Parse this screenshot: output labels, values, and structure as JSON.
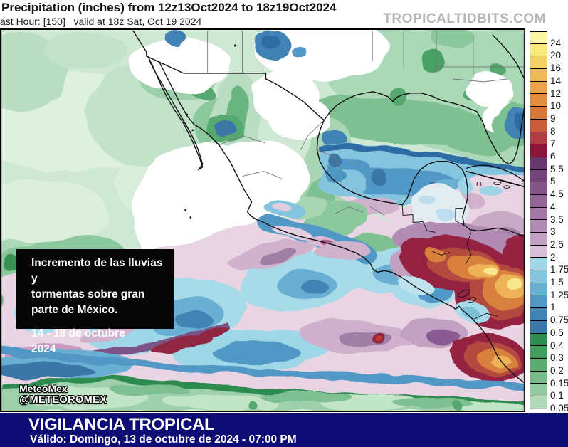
{
  "header": {
    "title": "Precipitation (inches) from 12z13Oct2024 to 18z19Oct2024",
    "subtitle": "ast Hour: [150]   valid at 18z Sat, Oct 19 2024",
    "watermark": "TROPICALTIDBITS.COM"
  },
  "annotation": {
    "line1": "Incremento de las lluvias y",
    "line2": "tormentas sobre gran",
    "line3": "parte de México.",
    "line4": "14 - 18 de octubre",
    "line5": "2024"
  },
  "credits": {
    "name": "MeteoMex",
    "handle": "@METEOROMEX"
  },
  "footer": {
    "title": "VIGILANCIA TROPICAL",
    "subtitle": "Válido: Domingo, 13 de octubre de 2024 - 07:00 PM",
    "bar_color": "#0c0c74"
  },
  "colorbar": {
    "units": "inches",
    "labels": [
      "24",
      "20",
      "16",
      "14",
      "12",
      "10",
      "9",
      "8",
      "7",
      "6",
      "5.5",
      "5",
      "4.5",
      "4",
      "3.5",
      "3",
      "2.5",
      "2",
      "1.75",
      "1.5",
      "1.25",
      "1",
      "0.75",
      "0.5",
      "0.4",
      "0.3",
      "0.2",
      "0.15",
      "0.1",
      "0.05"
    ],
    "colors": [
      "#fcf6a4",
      "#f8e87e",
      "#f4d166",
      "#efb857",
      "#eaa34c",
      "#e28e40",
      "#d8773a",
      "#c75d38",
      "#ad3e41",
      "#8a1538",
      "#67366e",
      "#75427a",
      "#845388",
      "#936597",
      "#a277a5",
      "#b18bb3",
      "#c2a0c1",
      "#d8bfd5",
      "#9ed8e8",
      "#84c6df",
      "#69afd3",
      "#5198c6",
      "#4183b4",
      "#3a76a7",
      "#2f8b4f",
      "#42a05f",
      "#5bad74",
      "#76bb89",
      "#92c9a0",
      "#b0dab8"
    ]
  },
  "map_palette": {
    "ocean_light_green": "#cfe8d4",
    "gulf_blue": "#85c4de",
    "storm_pink": "#e8d4e3",
    "heavy_maroon": "#94213f",
    "extreme_orange": "#d8803c",
    "extreme_yellow": "#f7e68e",
    "coast_line": "#111111"
  }
}
